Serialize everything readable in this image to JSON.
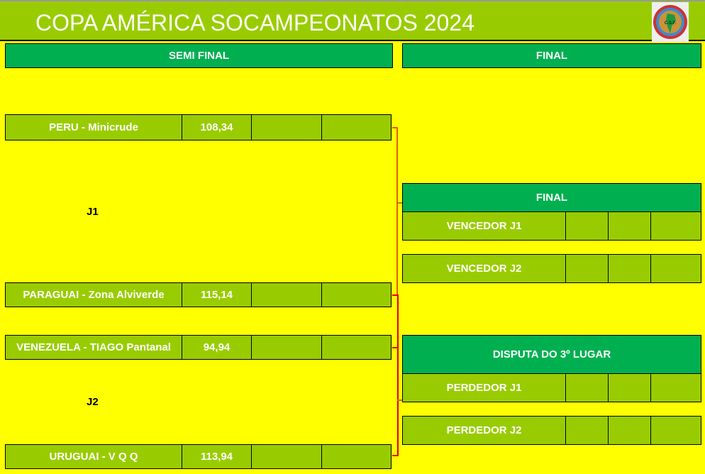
{
  "header": {
    "title": "COPA AMÉRICA SOCAMPEONATOS 2024",
    "logo_text": "C.S.F."
  },
  "sections": {
    "semi": "SEMI FINAL",
    "final": "FINAL"
  },
  "semis": [
    {
      "team": "PERU  - Minicrude",
      "score": "108,34"
    },
    {
      "team": "PARAGUAI - Zona Alviverde",
      "score": "115,14"
    },
    {
      "team": "VENEZUELA - TIAGO Pantanal",
      "score": "94,94"
    },
    {
      "team": "URUGUAI - V Q Q",
      "score": "113,94"
    }
  ],
  "games": {
    "j1": "J1",
    "j2": "J2"
  },
  "final": {
    "title": "FINAL",
    "teams": [
      "VENCEDOR J1",
      "VENCEDOR J2"
    ]
  },
  "third": {
    "title": "DISPUTA DO 3º LUGAR",
    "teams": [
      "PERDEDOR J1",
      "PERDEDOR J2"
    ]
  },
  "colors": {
    "header": "#99cc00",
    "section": "#00b050",
    "background": "#ffff00",
    "lines": "#e00000"
  }
}
